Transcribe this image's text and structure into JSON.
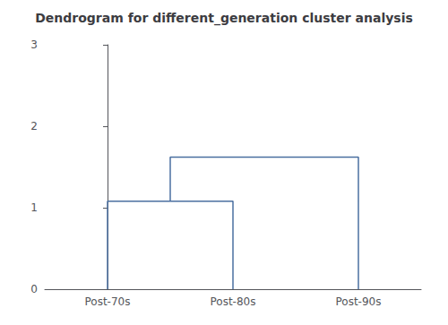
{
  "chart_data": {
    "type": "dendrogram",
    "title": "Dendrogram for different_generation cluster analysis",
    "categories": [
      "Post-70s",
      "Post-80s",
      "Post-90s"
    ],
    "merges": [
      {
        "left": [
          "Post-70s"
        ],
        "right": [
          "Post-80s"
        ],
        "height": 1.08
      },
      {
        "left": [
          "Post-70s",
          "Post-80s"
        ],
        "right": [
          "Post-90s"
        ],
        "height": 1.62
      }
    ],
    "color": "#4a6fa0",
    "ylim": [
      0,
      3
    ],
    "yticks": [
      0,
      1,
      2,
      3
    ],
    "grid": false
  }
}
